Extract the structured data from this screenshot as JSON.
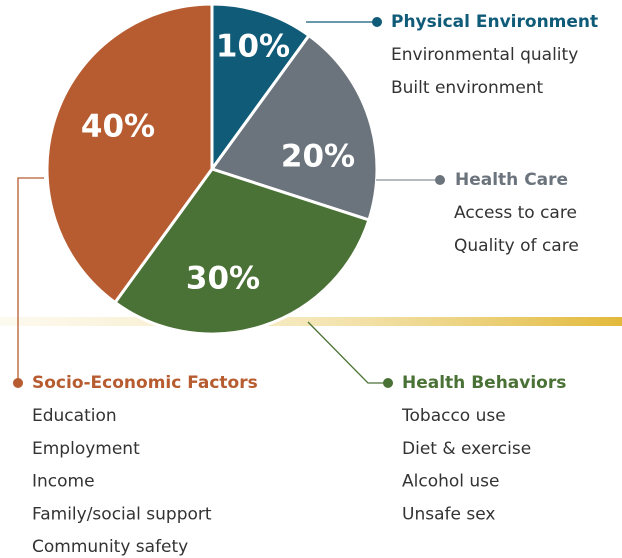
{
  "chart_data": {
    "type": "pie",
    "categories": [
      "Physical Environment",
      "Health Care",
      "Health Behaviors",
      "Socio-Economic Factors"
    ],
    "values": [
      10,
      20,
      30,
      40
    ],
    "value_labels": [
      "10%",
      "20%",
      "30%",
      "40%"
    ],
    "colors": [
      "#0f5b78",
      "#6b737c",
      "#4b7236",
      "#b75c30"
    ],
    "details": [
      [
        "Environmental quality",
        "Built environment"
      ],
      [
        "Access to care",
        "Quality of care"
      ],
      [
        "Tobacco use",
        "Diet & exercise",
        "Alcohol use",
        "Unsafe sex"
      ],
      [
        "Education",
        "Employment",
        "Income",
        "Family/social support",
        "Community safety"
      ]
    ]
  }
}
